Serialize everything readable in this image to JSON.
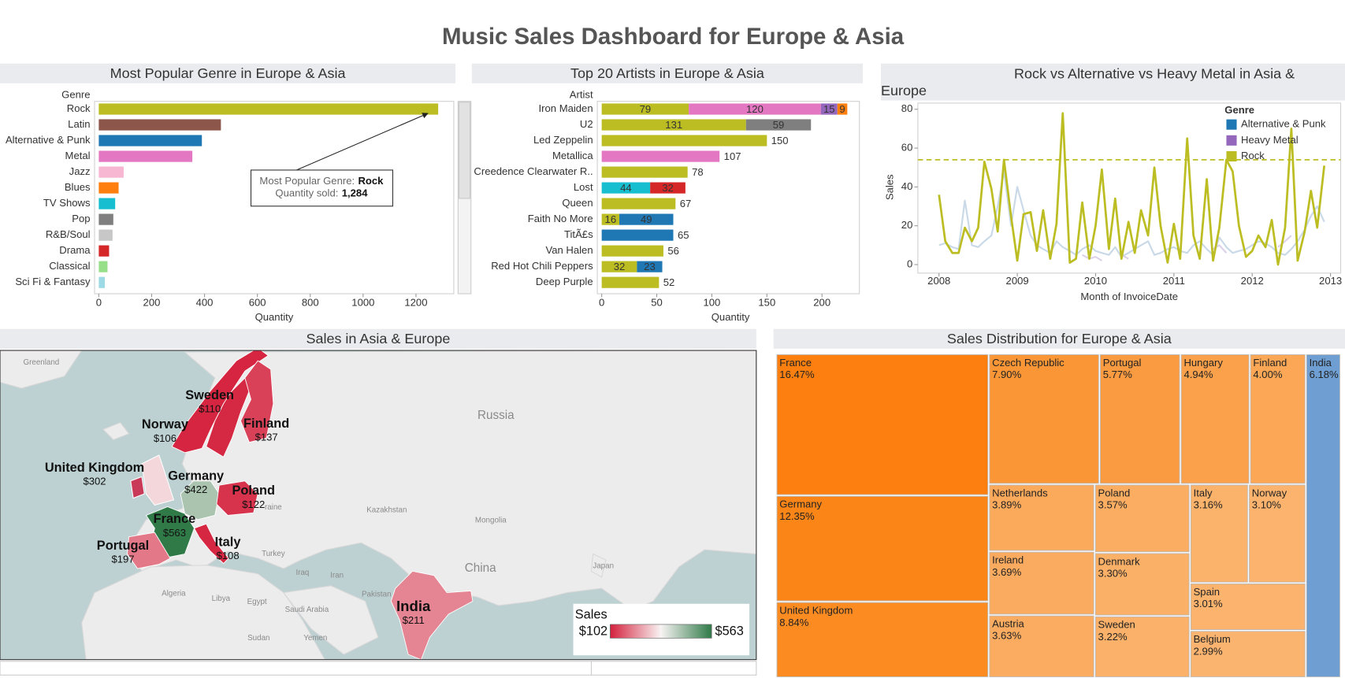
{
  "title": "Music Sales Dashboard for Europe & Asia",
  "chart_data": [
    {
      "type": "hbar",
      "title": "Most Popular Genre in Europe & Asia",
      "ylabel": "Genre",
      "xlabel": "Quantity",
      "categories": [
        "Rock",
        "Latin",
        "Alternative & Punk",
        "Metal",
        "Jazz",
        "Blues",
        "TV Shows",
        "Pop",
        "R&B/Soul",
        "Drama",
        "Classical",
        "Sci Fi & Fantasy"
      ],
      "values": [
        1284,
        462,
        390,
        354,
        94,
        75,
        62,
        55,
        52,
        39,
        33,
        23
      ],
      "colors": [
        "#bcbd22",
        "#8c564b",
        "#1f77b4",
        "#e377c2",
        "#f7b6d2",
        "#ff7f0e",
        "#17becf",
        "#7f7f7f",
        "#c7c7c7",
        "#d62728",
        "#98df8a",
        "#9edae5"
      ],
      "xlim": [
        -16,
        1343
      ],
      "xticks": [
        0,
        200,
        400,
        600,
        800,
        1000,
        1200
      ],
      "annotation": {
        "genre_text": "Most Popular Genre:",
        "quantity_text": "Quantity sold:",
        "quantity_label": "1,284"
      }
    },
    {
      "type": "stacked_hbar",
      "title": "Top 20 Artists in Europe & Asia",
      "ylabel": "Artist",
      "xlabel": "Quantity",
      "categories": [
        "Iron Maiden",
        "U2",
        "Led Zeppelin",
        "Metallica",
        "Creedence Clearwater R..",
        "Lost",
        "Queen",
        "Faith No More",
        "TitÃ£s",
        "Van Halen",
        "Red Hot Chili Peppers",
        "Deep Purple"
      ],
      "series": [
        {
          "color": "#bcbd22",
          "values": [
            79,
            131,
            150,
            null,
            78,
            null,
            67,
            16,
            null,
            56,
            32,
            52
          ]
        },
        {
          "color": "#e377c2",
          "values": [
            120,
            null,
            null,
            107,
            null,
            null,
            null,
            null,
            null,
            null,
            null,
            null
          ]
        },
        {
          "color": "#9467bd",
          "values": [
            15,
            null,
            null,
            null,
            null,
            null,
            null,
            null,
            null,
            null,
            null,
            null
          ]
        },
        {
          "color": "#ff7f0e",
          "values": [
            9,
            null,
            null,
            null,
            null,
            null,
            null,
            null,
            null,
            null,
            null,
            null
          ]
        },
        {
          "color": "#7f7f7f",
          "values": [
            null,
            59,
            null,
            null,
            null,
            null,
            null,
            null,
            null,
            null,
            null,
            null
          ]
        },
        {
          "color": "#17becf",
          "values": [
            null,
            null,
            null,
            null,
            null,
            44,
            null,
            null,
            null,
            null,
            null,
            null
          ]
        },
        {
          "color": "#d62728",
          "values": [
            null,
            null,
            null,
            null,
            null,
            32,
            null,
            null,
            null,
            null,
            null,
            null
          ]
        },
        {
          "color": "#1f77b4",
          "values": [
            null,
            null,
            null,
            null,
            null,
            null,
            null,
            49,
            65,
            null,
            23,
            null
          ]
        }
      ],
      "xlim": [
        -4,
        234
      ],
      "xticks": [
        0,
        50,
        100,
        150,
        200
      ]
    },
    {
      "type": "line",
      "title": "Rock vs Alternative vs Heavy Metal in Asia & Europe",
      "xlabel": "Month of InvoiceDate",
      "ylabel": "Sales",
      "legend_title": "Genre",
      "legend": "top-right",
      "x": [
        2008.0,
        2008.08,
        2008.17,
        2008.25,
        2008.33,
        2008.42,
        2008.5,
        2008.58,
        2008.67,
        2008.75,
        2008.83,
        2008.92,
        2009.0,
        2009.08,
        2009.17,
        2009.25,
        2009.33,
        2009.42,
        2009.5,
        2009.58,
        2009.67,
        2009.75,
        2009.83,
        2009.92,
        2010.0,
        2010.08,
        2010.17,
        2010.25,
        2010.33,
        2010.42,
        2010.5,
        2010.58,
        2010.67,
        2010.75,
        2010.83,
        2010.92,
        2011.0,
        2011.08,
        2011.17,
        2011.25,
        2011.33,
        2011.42,
        2011.5,
        2011.58,
        2011.67,
        2011.75,
        2011.83,
        2011.92,
        2012.0,
        2012.08,
        2012.17,
        2012.25,
        2012.33,
        2012.42,
        2012.5,
        2012.58,
        2012.67,
        2012.75,
        2012.83,
        2012.92
      ],
      "series": [
        {
          "name": "Alternative & Punk",
          "color": "#1f77b4",
          "line_color": "#c9d9e8",
          "values": [
            10,
            11,
            9,
            8,
            33,
            10,
            9,
            12,
            15,
            30,
            48,
            20,
            40,
            28,
            15,
            10,
            8,
            6,
            12,
            9,
            7,
            5,
            8,
            10,
            7,
            6,
            5,
            9,
            4,
            6,
            8,
            10,
            12,
            5,
            6,
            8,
            9,
            7,
            6,
            10,
            12,
            8,
            5,
            14,
            9,
            6,
            7,
            8,
            10,
            12,
            11,
            9,
            6,
            5,
            8,
            12,
            18,
            25,
            30,
            22
          ]
        },
        {
          "name": "Heavy Metal",
          "color": "#9467bd",
          "line_color": "#ddd2ea",
          "values": [
            null,
            null,
            null,
            null,
            null,
            null,
            null,
            null,
            null,
            null,
            null,
            null,
            null,
            null,
            null,
            null,
            null,
            null,
            null,
            null,
            null,
            null,
            5,
            3,
            4,
            2,
            null,
            null,
            5,
            3,
            null,
            null,
            null,
            null,
            null,
            null,
            null,
            null,
            null,
            null,
            null,
            null,
            8,
            10,
            6,
            null,
            null,
            null,
            null,
            null,
            null,
            null,
            9,
            12,
            15,
            null,
            null,
            null,
            null,
            null
          ]
        },
        {
          "name": "Rock",
          "color": "#bcbd22",
          "line_color": "#bcbd22",
          "values": [
            36,
            12,
            6,
            6,
            19,
            12,
            19,
            53,
            39,
            17,
            54,
            25,
            2,
            26,
            27,
            7,
            28,
            3,
            21,
            78,
            1,
            3,
            32,
            3,
            20,
            49,
            8,
            34,
            3,
            22,
            6,
            28,
            15,
            50,
            20,
            1,
            21,
            3,
            65,
            15,
            3,
            44,
            2,
            19,
            54,
            48,
            20,
            4,
            7,
            15,
            9,
            23,
            0,
            19,
            70,
            2,
            17,
            38,
            19,
            51
          ]
        }
      ],
      "reference_line": {
        "value": 54,
        "color": "#bcbd22"
      },
      "xlim": [
        2007.73,
        2013.13
      ],
      "xticks": [
        2008,
        2009,
        2010,
        2011,
        2012,
        2013
      ],
      "ylim": [
        -4.4,
        83.2
      ],
      "yticks": [
        0,
        20,
        40,
        60,
        80
      ]
    },
    {
      "type": "map",
      "title": "Sales in Asia & Europe",
      "categories": [
        "Sweden",
        "Norway",
        "Finland",
        "United Kingdom",
        "Germany",
        "Poland",
        "France",
        "Portugal",
        "Italy",
        "India"
      ],
      "values": [
        110,
        106,
        137,
        302,
        422,
        122,
        563,
        197,
        108,
        211
      ],
      "value_labels": [
        "$110",
        "$106",
        "$137",
        "$302",
        "$422",
        "$122",
        "$563",
        "$197",
        "$108",
        "$211"
      ],
      "colorbar": {
        "title": "Sales",
        "colorscale": [
          "#d4213d",
          "#f8f3f3",
          "#2f7a47"
        ],
        "clim": [
          102,
          563
        ],
        "cticks": [
          {
            "value": 102,
            "label": "$102"
          },
          {
            "value": 563,
            "label": "$563"
          }
        ]
      },
      "place_names": [
        "Greenland",
        "Russia",
        "Kazakhstan",
        "Mongolia",
        "China",
        "Japan",
        "Turkey",
        "Iraq",
        "Iran",
        "Algeria",
        "Libya",
        "Egypt",
        "Saudi Arabia",
        "Pakistan",
        "Sudan",
        "Yemen",
        "raine"
      ]
    },
    {
      "type": "treemap",
      "title": "Sales Distribution for Europe & Asia",
      "categories": [
        "France",
        "Germany",
        "United Kingdom",
        "Czech Republic",
        "Portugal",
        "Hungary",
        "Finland",
        "India",
        "Netherlands",
        "Poland",
        "Italy",
        "Norway",
        "Ireland",
        "Denmark",
        "Spain",
        "Austria",
        "Sweden",
        "Belgium"
      ],
      "values": [
        16.47,
        12.35,
        8.84,
        7.9,
        5.77,
        4.94,
        4.0,
        6.18,
        3.89,
        3.57,
        3.16,
        3.1,
        3.69,
        3.3,
        3.01,
        3.63,
        3.22,
        2.99
      ],
      "value_labels": [
        "16.47%",
        "12.35%",
        "8.84%",
        "7.90%",
        "5.77%",
        "4.94%",
        "4.00%",
        "6.18%",
        "3.89%",
        "3.57%",
        "3.16%",
        "3.10%",
        "3.69%",
        "3.30%",
        "3.01%",
        "3.63%",
        "3.22%",
        "2.99%"
      ],
      "colors": [
        "#fc7f10",
        "#fc8518",
        "#fc8b22",
        "#fb9637",
        "#fb9b41",
        "#fba04b",
        "#fba756",
        "#6f9fd2",
        "#fbaa5c",
        "#fbad62",
        "#fbb26b",
        "#fbb36d",
        "#fbab5f",
        "#fbb068",
        "#fbb36e",
        "#fbac60",
        "#fbb169",
        "#fbb470"
      ]
    }
  ]
}
